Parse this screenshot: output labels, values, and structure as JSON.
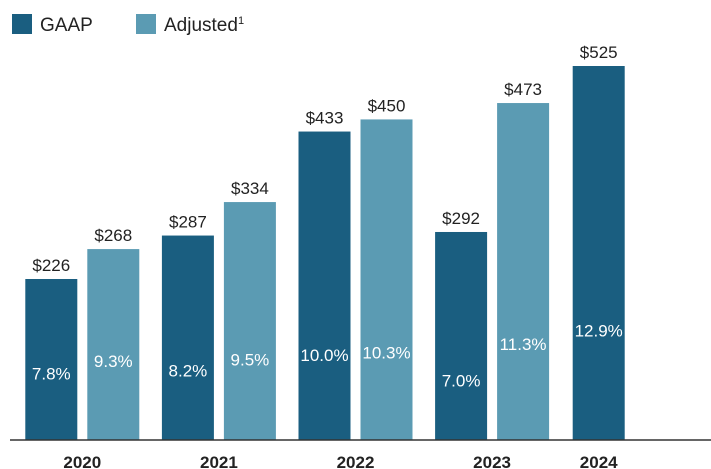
{
  "chart_data": {
    "type": "bar",
    "categories": [
      "2020",
      "2021",
      "2022",
      "2023",
      "2024"
    ],
    "series": [
      {
        "name": "GAAP",
        "color": "#1a5e80",
        "values": [
          226,
          287,
          433,
          292,
          525
        ],
        "value_labels": [
          "$226",
          "$287",
          "$433",
          "$292",
          "$525"
        ],
        "margins": [
          7.8,
          8.2,
          10.0,
          7.0,
          12.9
        ],
        "margin_labels": [
          "7.8%",
          "8.2%",
          "10.0%",
          "7.0%",
          "12.9%"
        ]
      },
      {
        "name": "Adjusted",
        "name_note": "1",
        "color": "#5b9bb3",
        "values": [
          268,
          334,
          450,
          473,
          null
        ],
        "value_labels": [
          "$268",
          "$334",
          "$450",
          "$473",
          null
        ],
        "margins": [
          9.3,
          9.5,
          10.3,
          11.3,
          null
        ],
        "margin_labels": [
          "9.3%",
          "9.5%",
          "10.3%",
          "11.3%",
          null
        ]
      }
    ],
    "ylim": [
      0,
      525
    ]
  }
}
